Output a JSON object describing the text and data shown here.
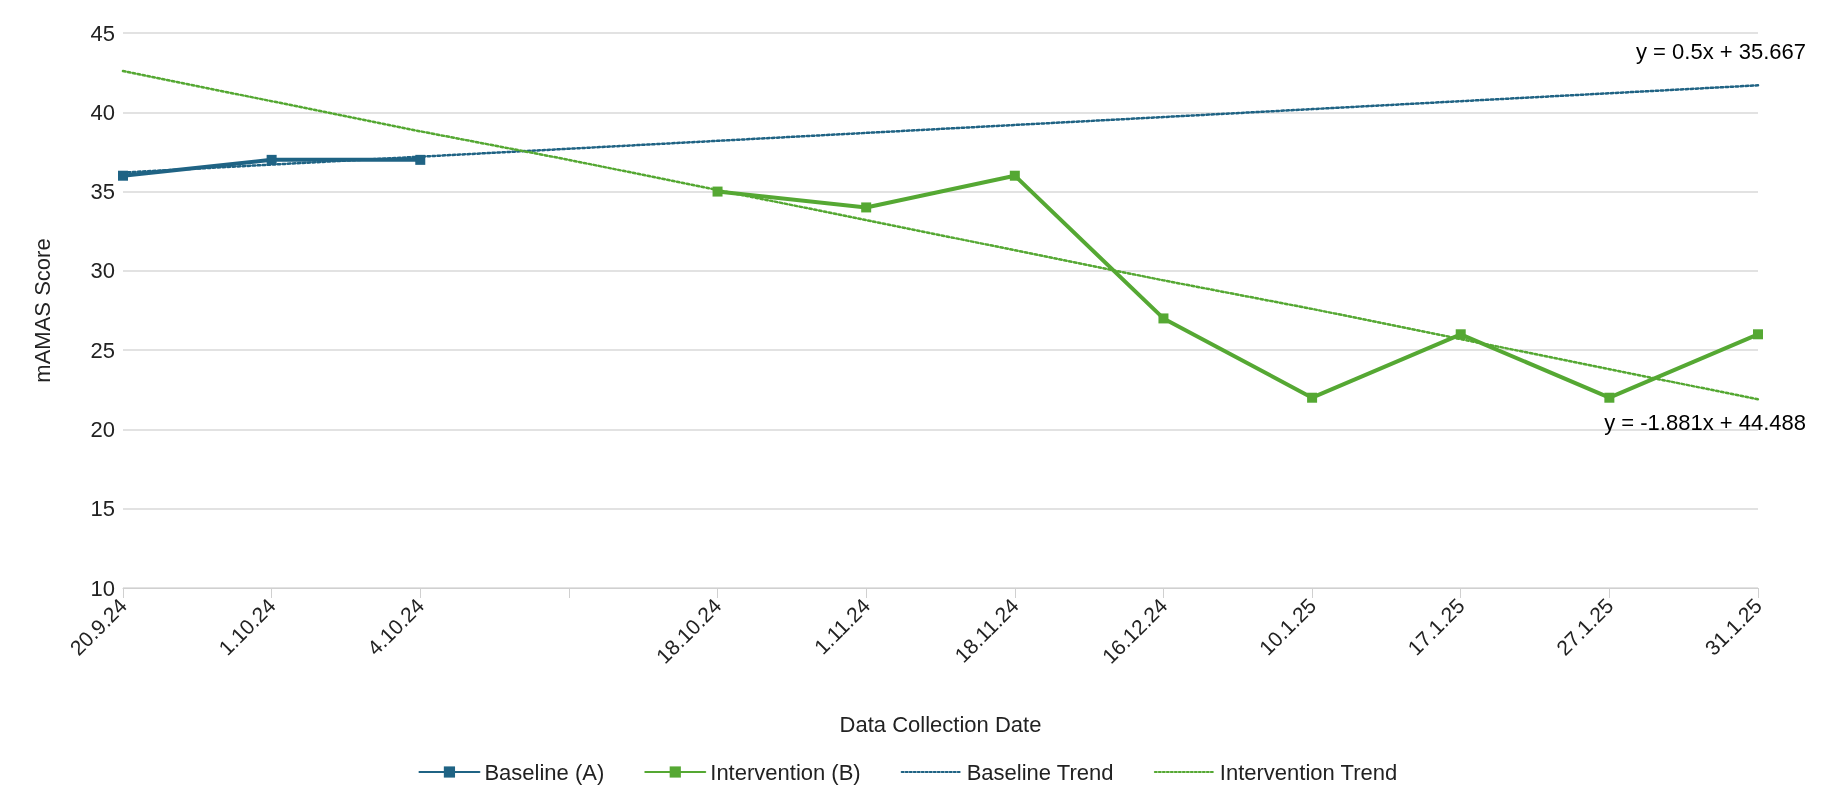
{
  "chart_data": {
    "type": "line",
    "xlabel": "Data Collection Date",
    "ylabel": "mAMAS Score",
    "categories": [
      "20.9.24",
      "1.10.24",
      "4.10.24",
      null,
      "18.10.24",
      "1.11.24",
      "18.11.24",
      "16.12.24",
      "10.1.25",
      "17.1.25",
      "27.1.25",
      "31.1.25"
    ],
    "series": [
      {
        "name": "Baseline (A)",
        "color": "#1f6384",
        "values": [
          36,
          37,
          37,
          null,
          null,
          null,
          null,
          null,
          null,
          null,
          null,
          null
        ]
      },
      {
        "name": "Intervention (B)",
        "color": "#55a833",
        "values": [
          null,
          null,
          null,
          null,
          35,
          34,
          36,
          27,
          22,
          26,
          22,
          26
        ]
      },
      {
        "name": "Baseline Trend",
        "color": "#1f6384",
        "marker": "none",
        "line_style": "dotted",
        "values": [
          36.2,
          36.7,
          37.2,
          37.7,
          38.2,
          38.7,
          39.2,
          39.7,
          40.2,
          40.7,
          41.2,
          41.7
        ]
      },
      {
        "name": "Intervention Trend",
        "color": "#55a833",
        "marker": "none",
        "line_style": "dotted",
        "values": [
          42.6,
          40.7,
          38.8,
          37.0,
          35.1,
          33.2,
          31.3,
          29.4,
          27.6,
          25.7,
          23.8,
          21.9
        ]
      }
    ],
    "annotations": [
      "y = 0.5x + 35.667",
      "y = -1.881x + 44.488"
    ],
    "ylim": [
      10,
      45
    ],
    "yticks": [
      10,
      15,
      20,
      25,
      30,
      35,
      40,
      45
    ],
    "grid": "y",
    "legend": "bottom",
    "marker": "square",
    "line_style": "solid"
  }
}
